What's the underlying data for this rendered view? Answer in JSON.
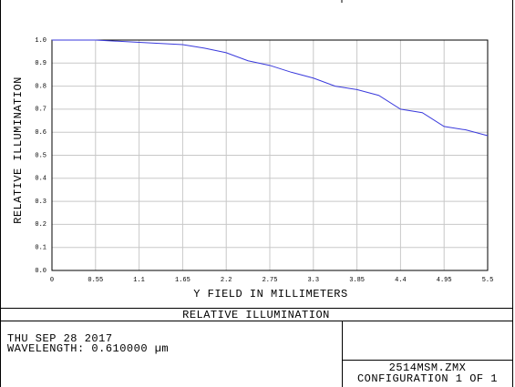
{
  "chart_data": {
    "type": "line",
    "title": "RELATIVE ILLUMINATION",
    "x_label": "Y FIELD IN MILLIMETERS",
    "y_label": "RELATIVE ILLUMINATION",
    "x": [
      0,
      0.55,
      1.1,
      1.65,
      1.925,
      2.2,
      2.475,
      2.75,
      3.025,
      3.3,
      3.575,
      3.85,
      4.125,
      4.4,
      4.675,
      4.95,
      5.225,
      5.5
    ],
    "values": [
      1.0,
      1.0,
      0.99,
      0.98,
      0.965,
      0.945,
      0.91,
      0.89,
      0.86,
      0.835,
      0.8,
      0.785,
      0.76,
      0.7,
      0.685,
      0.625,
      0.61,
      0.585
    ],
    "color": "#3a3adc",
    "xlim": [
      0,
      5.5
    ],
    "xticks": [
      0,
      0.55,
      1.1,
      1.65,
      2.2,
      2.75,
      3.3,
      3.85,
      4.4,
      4.95,
      5.5
    ],
    "ylim": [
      0,
      1
    ],
    "yticks": [
      {
        "value": 0,
        "label": "0.0"
      },
      0.1,
      0.2,
      0.3,
      0.4,
      0.5,
      0.6,
      0.7,
      0.8,
      0.9,
      {
        "value": 1,
        "label": "1.0"
      }
    ],
    "grid": true
  },
  "footer": {
    "date": "THU SEP 28 2017",
    "wavelength": "WAVELENGTH: 0.610000 µm",
    "file": "2514MSM.ZMX",
    "configuration": "CONFIGURATION 1 OF 1"
  }
}
